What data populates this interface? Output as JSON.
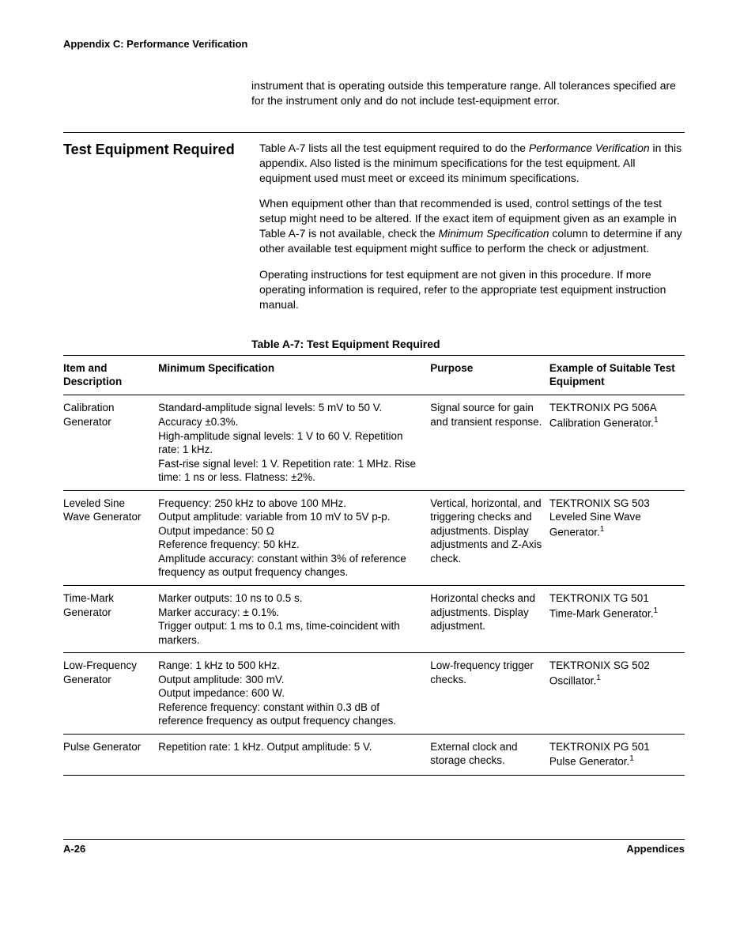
{
  "header": "Appendix C: Performance Verification",
  "intro": "instrument that is operating outside this temperature range. All tolerances specified are for the instrument only and do not include test-equipment error.",
  "section": {
    "title": "Test Equipment Required",
    "p1_a": "Table A-7 lists all the test equipment required to do the ",
    "p1_i": "Performance Verification",
    "p1_b": " in this appendix. Also listed is the minimum specifications for the test equipment. All equipment used must meet or exceed its minimum specifications.",
    "p2_a": "When equipment other than that recommended is used, control settings of the test setup might need to be altered. If the exact item of equipment given as an example in Table A-7 is not available, check the ",
    "p2_i": "Minimum Specification",
    "p2_b": " column to determine if any other available test equipment might suffice to perform the check or adjustment.",
    "p3": "Operating instructions for test equipment are not given in this procedure. If more operating information is required, refer to the appropriate test equipment instruction manual."
  },
  "table": {
    "caption": "Table A-7:  Test Equipment Required",
    "headers": {
      "item": "Item and Description",
      "spec": "Minimum Specification",
      "purpose": "Purpose",
      "example": "Example of Suitable Test Equipment"
    },
    "rows": [
      {
        "item": "Calibration Generator",
        "spec": "Standard-amplitude signal levels: 5 mV to 50 V. Accuracy ±0.3%.\nHigh-amplitude signal levels: 1 V to 60 V. Repetition rate: 1 kHz.\nFast-rise signal level: 1 V. Repetition rate: 1 MHz. Rise time: 1 ns or less. Flatness: ±2%.",
        "purpose": "Signal source for gain and transient response.",
        "example": "TEKTRONIX PG 506A Calibration Generator.",
        "note": "1"
      },
      {
        "item": "Leveled Sine Wave Generator",
        "spec": "Frequency: 250 kHz to above 100 MHz.\nOutput amplitude: variable from 10 mV to 5V p-p.\nOutput impedance: 50 Ω\nReference frequency: 50 kHz.\nAmplitude accuracy: constant within 3% of reference frequency as output frequency changes.",
        "purpose": "Vertical, horizontal, and triggering checks and adjustments. Display adjustments and Z-Axis check.",
        "example": "TEKTRONIX SG 503 Leveled Sine Wave Generator.",
        "note": "1"
      },
      {
        "item": "Time-Mark Generator",
        "spec": "Marker outputs: 10 ns to 0.5 s.\nMarker accuracy: ± 0.1%.\nTrigger output: 1 ms to 0.1 ms, time-coincident with markers.",
        "purpose": "Horizontal checks and adjustments. Display adjustment.",
        "example": "TEKTRONIX TG 501 Time-Mark Generator.",
        "note": "1"
      },
      {
        "item": "Low-Frequency Generator",
        "spec": "Range: 1 kHz to 500 kHz.\nOutput amplitude: 300 mV.\nOutput impedance: 600 W.\nReference frequency: constant within 0.3 dB of reference frequency as output frequency changes.",
        "purpose": "Low-frequency trigger checks.",
        "example": "TEKTRONIX SG 502 Oscillator.",
        "note": "1"
      },
      {
        "item": "Pulse Generator",
        "spec": "Repetition rate: 1 kHz. Output amplitude: 5 V.",
        "purpose": "External clock and storage checks.",
        "example": "TEKTRONIX PG 501 Pulse Generator.",
        "note": "1"
      }
    ]
  },
  "footer": {
    "left": "A-26",
    "right": "Appendices"
  }
}
